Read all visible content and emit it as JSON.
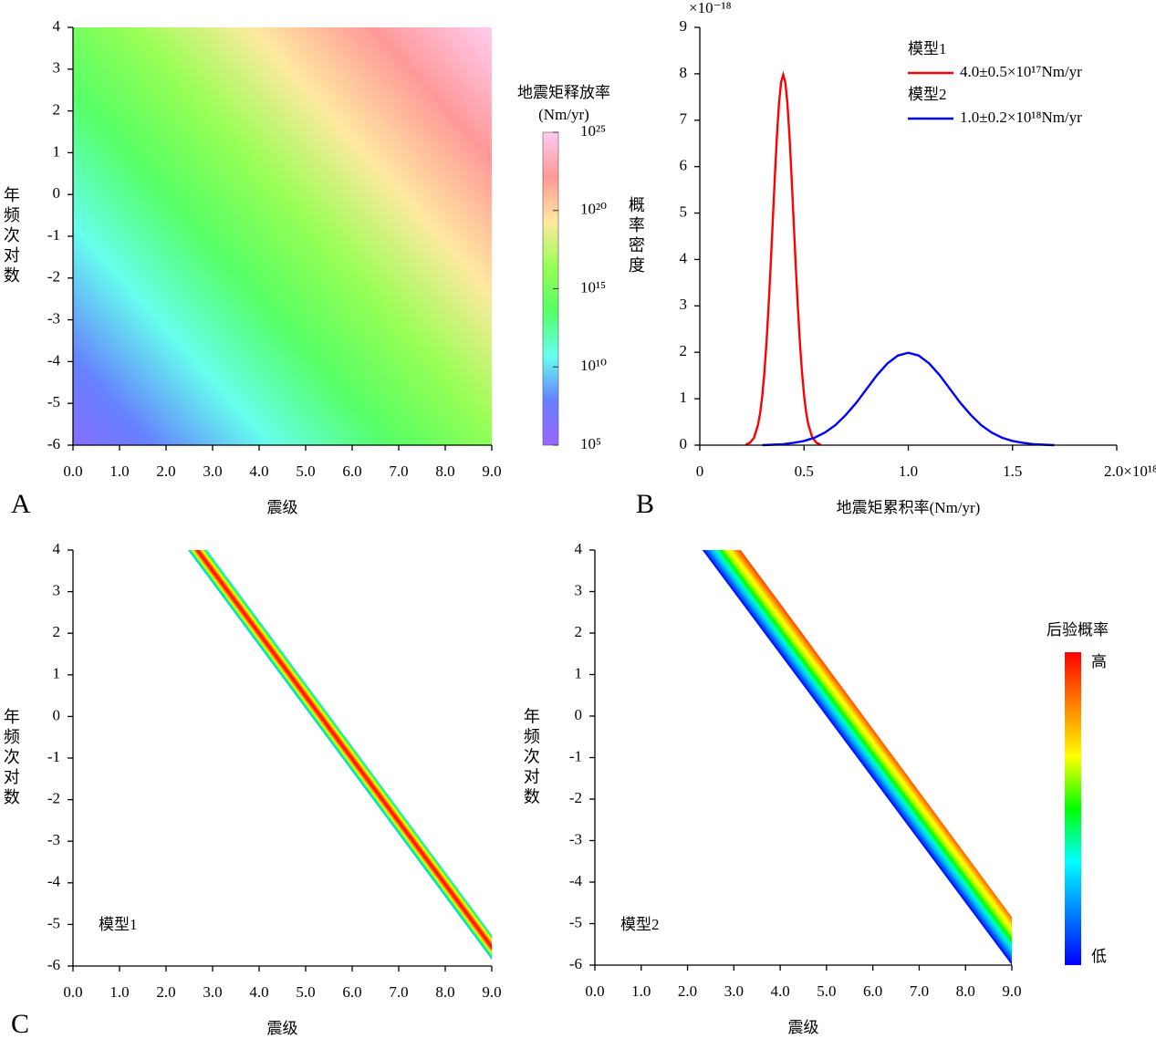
{
  "chart_data": [
    {
      "type": "heatmap",
      "panel_label": "A",
      "xlabel": "震级",
      "ylabel": "年频次对数",
      "xlim": [
        0,
        9
      ],
      "ylim": [
        -6,
        4
      ],
      "xticks": [
        {
          "value": 0,
          "label": "0.0"
        },
        {
          "value": 1,
          "label": "1.0"
        },
        {
          "value": 2,
          "label": "2.0"
        },
        {
          "value": 3,
          "label": "3.0"
        },
        {
          "value": 4,
          "label": "4.0"
        },
        {
          "value": 5,
          "label": "5.0"
        },
        {
          "value": 6,
          "label": "6.0"
        },
        {
          "value": 7,
          "label": "7.0"
        },
        {
          "value": 8,
          "label": "8.0"
        },
        {
          "value": 9,
          "label": "9.0"
        }
      ],
      "yticks": [
        -6,
        -5,
        -4,
        -3,
        -2,
        -1,
        0,
        1,
        2,
        3,
        4
      ],
      "z": [
        [
          1000000.0,
          1e+16
        ],
        [
          1000000000000000.0,
          1e+25
        ]
      ],
      "colorbar": {
        "title": [
          "地震矩释放率",
          "(Nm/yr)"
        ],
        "clim": [
          100000.0,
          1e+25
        ],
        "log": true,
        "ticks": [
          {
            "value": 100000.0,
            "label": "10⁵"
          },
          {
            "value": 10000000000.0,
            "label": "10¹⁰"
          },
          {
            "value": 1000000000000000.0,
            "label": "10¹⁵"
          },
          {
            "value": 1e+20,
            "label": "10²⁰"
          },
          {
            "value": 1e+25,
            "label": "10²⁵"
          }
        ],
        "colors": [
          "#9966ff",
          "#6680ff",
          "#66ffee",
          "#55ff66",
          "#99ff55",
          "#ffe8a0",
          "#ff9999",
          "#ffccf0"
        ]
      }
    },
    {
      "type": "line",
      "panel_label": "B",
      "xlabel": "地震矩累积率(Nm/yr)",
      "ylabel": "概率密度",
      "y_multiplier": "×10⁻¹⁸",
      "xlim": [
        0,
        2
      ],
      "ylim": [
        0,
        9
      ],
      "xticks": [
        0,
        0.5,
        {
          "value": 1,
          "label": "1.0"
        },
        1.5,
        {
          "value": 2,
          "label": "2.0×10¹⁸"
        }
      ],
      "yticks": [
        0,
        1,
        2,
        3,
        4,
        5,
        6,
        7,
        8,
        9
      ],
      "series": [
        {
          "name": "模型1",
          "description": "4.0±0.5×10¹⁷Nm/yr",
          "color": "#ff0000",
          "x": [
            0.22,
            0.24,
            0.26,
            0.28,
            0.29,
            0.3,
            0.31,
            0.32,
            0.33,
            0.34,
            0.35,
            0.36,
            0.37,
            0.38,
            0.39,
            0.4,
            0.41,
            0.42,
            0.43,
            0.44,
            0.45,
            0.46,
            0.47,
            0.48,
            0.49,
            0.5,
            0.51,
            0.52,
            0.54,
            0.56,
            0.58
          ],
          "values": [
            0.01,
            0.05,
            0.16,
            0.45,
            0.71,
            1.08,
            1.58,
            2.22,
            3.0,
            3.88,
            4.84,
            5.79,
            6.67,
            7.37,
            7.82,
            7.98,
            7.82,
            7.37,
            6.67,
            5.79,
            4.84,
            3.88,
            3.0,
            2.22,
            1.58,
            1.08,
            0.71,
            0.45,
            0.16,
            0.05,
            0.01
          ]
        },
        {
          "name": "模型2",
          "description": "1.0±0.2×10¹⁸Nm/yr",
          "color": "#0000ff",
          "x": [
            0.3,
            0.35,
            0.4,
            0.45,
            0.5,
            0.55,
            0.6,
            0.65,
            0.7,
            0.75,
            0.8,
            0.85,
            0.9,
            0.95,
            1.0,
            1.05,
            1.1,
            1.15,
            1.2,
            1.25,
            1.3,
            1.35,
            1.4,
            1.45,
            1.5,
            1.55,
            1.6,
            1.65,
            1.7
          ],
          "values": [
            0,
            0.01,
            0.02,
            0.05,
            0.09,
            0.16,
            0.27,
            0.43,
            0.65,
            0.91,
            1.21,
            1.51,
            1.76,
            1.93,
            1.99,
            1.93,
            1.76,
            1.51,
            1.21,
            0.91,
            0.65,
            0.43,
            0.27,
            0.16,
            0.09,
            0.05,
            0.02,
            0.01,
            0
          ]
        }
      ]
    },
    {
      "type": "band",
      "panel_label": "C",
      "model_label": "模型1",
      "xlabel": "震级",
      "ylabel": "年频次对数",
      "xlim": [
        0,
        9
      ],
      "ylim": [
        -6,
        4
      ],
      "xticks": [
        {
          "value": 0,
          "label": "0.0"
        },
        {
          "value": 1,
          "label": "1.0"
        },
        {
          "value": 2,
          "label": "2.0"
        },
        {
          "value": 3,
          "label": "3.0"
        },
        {
          "value": 4,
          "label": "4.0"
        },
        {
          "value": 5,
          "label": "5.0"
        },
        {
          "value": 6,
          "label": "6.0"
        },
        {
          "value": 7,
          "label": "7.0"
        },
        {
          "value": 8,
          "label": "8.0"
        },
        {
          "value": 9,
          "label": "9.0"
        }
      ],
      "yticks": [
        -6,
        -5,
        -4,
        -3,
        -2,
        -1,
        0,
        1,
        2,
        3,
        4
      ],
      "lower_edge": {
        "x": [
          2.47,
          9
        ],
        "y": [
          4,
          -5.85
        ]
      },
      "upper_edge": {
        "x": [
          2.88,
          9
        ],
        "y": [
          4,
          -5.25
        ]
      },
      "band_colors": [
        "#00c0ff",
        "#00ff80",
        "#ffff00",
        "#ff6000",
        "#ff0000",
        "#ff6000",
        "#ffff00",
        "#40ff40",
        "#00e0ff"
      ]
    },
    {
      "type": "band",
      "model_label": "模型2",
      "xlabel": "震级",
      "ylabel": "年频次对数",
      "xlim": [
        0,
        9
      ],
      "ylim": [
        -6,
        4
      ],
      "xticks": [
        {
          "value": 0,
          "label": "0.0"
        },
        {
          "value": 1,
          "label": "1.0"
        },
        {
          "value": 2,
          "label": "2.0"
        },
        {
          "value": 3,
          "label": "3.0"
        },
        {
          "value": 4,
          "label": "4.0"
        },
        {
          "value": 5,
          "label": "5.0"
        },
        {
          "value": 6,
          "label": "6.0"
        },
        {
          "value": 7,
          "label": "7.0"
        },
        {
          "value": 8,
          "label": "8.0"
        },
        {
          "value": 9,
          "label": "9.0"
        }
      ],
      "yticks": [
        -6,
        -5,
        -4,
        -3,
        -2,
        -1,
        0,
        1,
        2,
        3,
        4
      ],
      "lower_edge": {
        "x": [
          2.32,
          9
        ],
        "y": [
          4,
          -6
        ]
      },
      "upper_edge": {
        "x": [
          3.15,
          9
        ],
        "y": [
          4,
          -4.84
        ]
      },
      "band_colors": [
        "#0000ff",
        "#0060ff",
        "#00c0ff",
        "#00ffc0",
        "#00ff00",
        "#c0ff00",
        "#ffff00",
        "#ffa000",
        "#ff5000"
      ],
      "colorbar": {
        "title": "后验概率",
        "high_label": "高",
        "low_label": "低",
        "colors": [
          "#0000ff",
          "#0080ff",
          "#00ffff",
          "#00ff00",
          "#ffff00",
          "#ff8000",
          "#ff0000"
        ]
      }
    }
  ]
}
